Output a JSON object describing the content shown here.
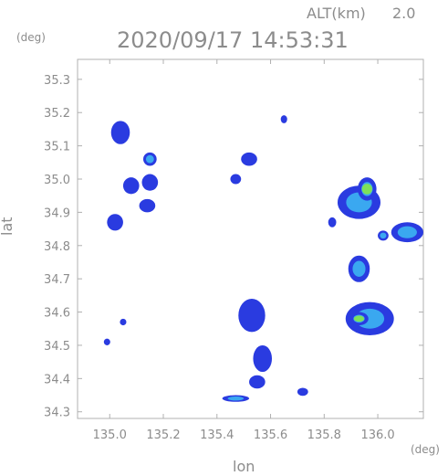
{
  "header": {
    "altitude_label": "ALT(km)",
    "altitude_value": "2.0",
    "timestamp": "2020/09/17 14:53:31",
    "y_unit": "(deg)",
    "x_unit": "(deg)"
  },
  "chart_data": {
    "type": "heatmap",
    "title": "2020/09/17 14:53:31",
    "xlabel": "lon",
    "ylabel": "lat",
    "xlim": [
      134.88,
      136.17
    ],
    "ylim": [
      34.28,
      35.36
    ],
    "x_ticks": [
      "135.0",
      "135.2",
      "135.4",
      "135.6",
      "135.8",
      "136.0"
    ],
    "x_tick_values": [
      135.0,
      135.2,
      135.4,
      135.6,
      135.8,
      136.0
    ],
    "y_ticks": [
      "34.3",
      "34.4",
      "34.5",
      "34.6",
      "34.7",
      "34.8",
      "34.9",
      "35.0",
      "35.1",
      "35.2",
      "35.3"
    ],
    "y_tick_values": [
      34.3,
      34.4,
      34.5,
      34.6,
      34.7,
      34.8,
      34.9,
      35.0,
      35.1,
      35.2,
      35.3
    ],
    "grid": false,
    "colors": {
      "low": "#2a3be0",
      "mid": "#3aa8f0",
      "high": "#7ee05a",
      "peak": "#c8f04a"
    },
    "cells": [
      {
        "lon": 135.93,
        "lat": 34.93,
        "rlon": 0.08,
        "rlat": 0.05,
        "level": 2
      },
      {
        "lon": 135.96,
        "lat": 34.97,
        "rlon": 0.035,
        "rlat": 0.035,
        "level": 3
      },
      {
        "lon": 136.11,
        "lat": 34.84,
        "rlon": 0.06,
        "rlat": 0.03,
        "level": 2
      },
      {
        "lon": 135.93,
        "lat": 34.73,
        "rlon": 0.04,
        "rlat": 0.04,
        "level": 2
      },
      {
        "lon": 135.97,
        "lat": 34.58,
        "rlon": 0.09,
        "rlat": 0.05,
        "level": 2
      },
      {
        "lon": 135.93,
        "lat": 34.58,
        "rlon": 0.035,
        "rlat": 0.02,
        "level": 3
      },
      {
        "lon": 135.02,
        "lat": 34.87,
        "rlon": 0.03,
        "rlat": 0.025,
        "level": 1
      },
      {
        "lon": 135.08,
        "lat": 34.98,
        "rlon": 0.03,
        "rlat": 0.025,
        "level": 1
      },
      {
        "lon": 135.15,
        "lat": 34.99,
        "rlon": 0.03,
        "rlat": 0.025,
        "level": 1
      },
      {
        "lon": 135.15,
        "lat": 35.06,
        "rlon": 0.025,
        "rlat": 0.02,
        "level": 2
      },
      {
        "lon": 135.14,
        "lat": 34.92,
        "rlon": 0.03,
        "rlat": 0.02,
        "level": 1
      },
      {
        "lon": 135.57,
        "lat": 34.46,
        "rlon": 0.035,
        "rlat": 0.04,
        "level": 1
      },
      {
        "lon": 135.53,
        "lat": 34.59,
        "rlon": 0.05,
        "rlat": 0.05,
        "level": 1
      },
      {
        "lon": 135.55,
        "lat": 34.39,
        "rlon": 0.03,
        "rlat": 0.02,
        "level": 1
      },
      {
        "lon": 135.47,
        "lat": 34.34,
        "rlon": 0.05,
        "rlat": 0.01,
        "level": 2
      },
      {
        "lon": 135.72,
        "lat": 34.36,
        "rlon": 0.02,
        "rlat": 0.012,
        "level": 1
      },
      {
        "lon": 135.52,
        "lat": 35.06,
        "rlon": 0.03,
        "rlat": 0.02,
        "level": 1
      },
      {
        "lon": 135.47,
        "lat": 35.0,
        "rlon": 0.02,
        "rlat": 0.015,
        "level": 1
      },
      {
        "lon": 135.65,
        "lat": 35.18,
        "rlon": 0.012,
        "rlat": 0.012,
        "level": 1
      },
      {
        "lon": 135.04,
        "lat": 35.14,
        "rlon": 0.035,
        "rlat": 0.035,
        "level": 1
      },
      {
        "lon": 135.83,
        "lat": 34.87,
        "rlon": 0.015,
        "rlat": 0.015,
        "level": 1
      },
      {
        "lon": 136.02,
        "lat": 34.83,
        "rlon": 0.02,
        "rlat": 0.015,
        "level": 2
      },
      {
        "lon": 135.05,
        "lat": 34.57,
        "rlon": 0.012,
        "rlat": 0.01,
        "level": 1
      },
      {
        "lon": 134.99,
        "lat": 34.51,
        "rlon": 0.012,
        "rlat": 0.01,
        "level": 1
      }
    ]
  }
}
